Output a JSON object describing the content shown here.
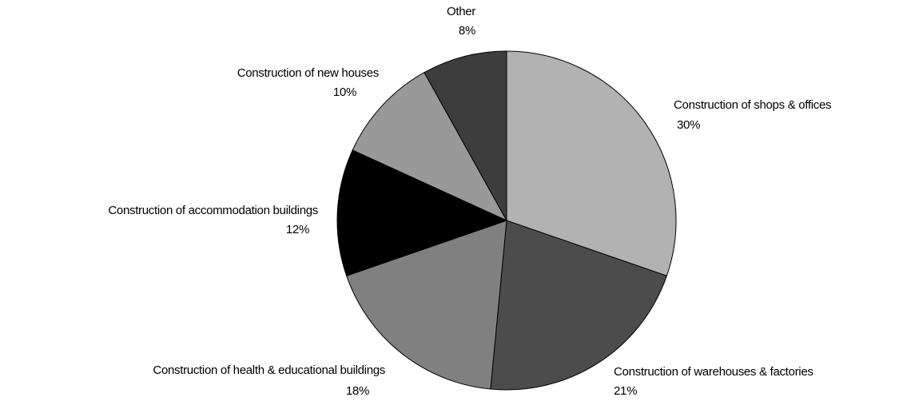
{
  "chart_data": {
    "type": "pie",
    "categories": [
      "Construction of shops & offices",
      "Construction of warehouses & factories",
      "Construction of health & educational buildings",
      "Construction of accommodation buildings",
      "Construction of new houses",
      "Other"
    ],
    "values": [
      30,
      21,
      18,
      12,
      10,
      8
    ],
    "value_labels": [
      "30%",
      "21%",
      "18%",
      "12%",
      "10%",
      "8%"
    ],
    "colors": [
      "#b2b2b2",
      "#4c4c4c",
      "#808080",
      "#000000",
      "#999999",
      "#3d3d3d"
    ]
  }
}
